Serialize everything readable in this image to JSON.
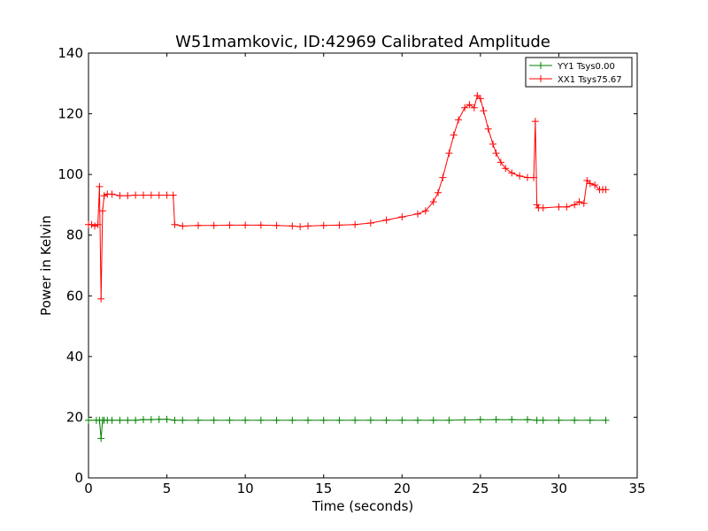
{
  "chart_data": {
    "type": "line",
    "title": "W51mamkovic, ID:42969 Calibrated Amplitude",
    "xlabel": "Time (seconds)",
    "ylabel": "Power in Kelvin",
    "xlim": [
      0,
      35
    ],
    "ylim": [
      0,
      140
    ],
    "xticks": [
      0,
      5,
      10,
      15,
      20,
      25,
      30,
      35
    ],
    "yticks": [
      0,
      20,
      40,
      60,
      80,
      100,
      120,
      140
    ],
    "xtick_labels": [
      "0",
      "5",
      "10",
      "15",
      "20",
      "25",
      "30",
      "35"
    ],
    "ytick_labels": [
      "0",
      "20",
      "40",
      "60",
      "80",
      "100",
      "120",
      "140"
    ],
    "grid": false,
    "legend_position": "top-right",
    "marker": "plus",
    "series": [
      {
        "name": "YY1 Tsys0.00",
        "color": "#008000",
        "x": [
          0.0,
          0.5,
          0.7,
          0.8,
          0.9,
          1.0,
          1.2,
          1.5,
          2.0,
          2.5,
          3.0,
          3.5,
          4.0,
          4.5,
          5.0,
          5.5,
          6.0,
          7.0,
          8.0,
          9.0,
          10.0,
          11.0,
          12.0,
          13.0,
          14.0,
          15.0,
          16.0,
          17.0,
          18.0,
          19.0,
          20.0,
          21.0,
          22.0,
          23.0,
          24.0,
          25.0,
          26.0,
          27.0,
          28.0,
          28.6,
          29.0,
          30.0,
          31.0,
          32.0,
          33.0
        ],
        "y": [
          19.0,
          19.0,
          19.0,
          13.0,
          19.0,
          19.0,
          19.0,
          19.0,
          19.0,
          19.0,
          19.0,
          19.2,
          19.2,
          19.3,
          19.3,
          19.0,
          19.0,
          19.0,
          19.0,
          19.0,
          19.0,
          19.0,
          19.0,
          19.0,
          19.0,
          19.0,
          19.0,
          19.0,
          19.0,
          19.0,
          19.0,
          19.0,
          19.0,
          19.0,
          19.1,
          19.2,
          19.2,
          19.2,
          19.2,
          19.0,
          19.0,
          19.0,
          19.0,
          19.0,
          19.0
        ]
      },
      {
        "name": "XX1 Tsys75.67",
        "color": "#ff0000",
        "x": [
          0.0,
          0.2,
          0.4,
          0.6,
          0.7,
          0.8,
          0.9,
          1.0,
          1.2,
          1.5,
          2.0,
          2.5,
          3.0,
          3.5,
          4.0,
          4.5,
          5.0,
          5.4,
          5.5,
          6.0,
          7.0,
          8.0,
          9.0,
          10.0,
          11.0,
          12.0,
          13.0,
          13.5,
          14.0,
          15.0,
          16.0,
          17.0,
          18.0,
          19.0,
          20.0,
          21.0,
          21.5,
          22.0,
          22.3,
          22.6,
          23.0,
          23.3,
          23.6,
          24.0,
          24.3,
          24.6,
          24.8,
          25.0,
          25.2,
          25.5,
          25.8,
          26.0,
          26.3,
          26.6,
          27.0,
          27.5,
          28.0,
          28.4,
          28.5,
          28.6,
          28.7,
          29.0,
          30.0,
          30.5,
          31.0,
          31.3,
          31.6,
          31.8,
          32.0,
          32.3,
          32.6,
          32.8,
          33.0
        ],
        "y": [
          83.5,
          83.5,
          83.0,
          83.5,
          96.0,
          59.0,
          88.0,
          93.0,
          93.5,
          93.5,
          93.0,
          93.0,
          93.2,
          93.2,
          93.2,
          93.2,
          93.2,
          93.2,
          83.5,
          83.0,
          83.2,
          83.2,
          83.3,
          83.3,
          83.3,
          83.2,
          83.0,
          82.8,
          83.0,
          83.2,
          83.3,
          83.5,
          84.0,
          85.0,
          86.0,
          87.0,
          88.0,
          91.0,
          94.0,
          99.0,
          107.0,
          113.0,
          118.0,
          122.0,
          123.0,
          122.0,
          126.0,
          125.0,
          121.0,
          115.0,
          110.0,
          107.0,
          104.0,
          102.0,
          100.5,
          99.5,
          99.0,
          99.0,
          117.5,
          90.0,
          89.0,
          89.0,
          89.3,
          89.3,
          90.0,
          91.0,
          90.5,
          98.0,
          97.0,
          96.5,
          95.0,
          95.0,
          95.0
        ]
      }
    ]
  }
}
